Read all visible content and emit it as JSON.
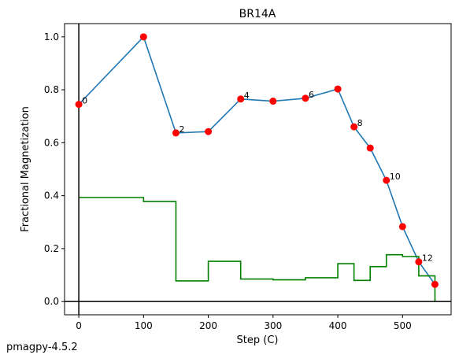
{
  "chart_data": {
    "type": "line",
    "title": "BR14A",
    "x_label": "Step (C)",
    "y_label": "Fractional Magnetization",
    "footer": "pmagpy-4.5.2",
    "x": [
      0,
      100,
      150,
      200,
      250,
      300,
      350,
      400,
      425,
      450,
      475,
      500,
      525,
      550
    ],
    "series": [
      {
        "name": "magnetization",
        "color": "#1f77b4",
        "marker_color": "#ff0000",
        "values": [
          0.745,
          1.0,
          0.637,
          0.642,
          0.765,
          0.757,
          0.768,
          0.803,
          0.66,
          0.58,
          0.458,
          0.283,
          0.15,
          0.065
        ],
        "point_labels": [
          0,
          null,
          2,
          null,
          4,
          null,
          6,
          null,
          8,
          null,
          10,
          null,
          12,
          null
        ]
      },
      {
        "name": "step",
        "color": "#008000",
        "step": "post",
        "values": [
          0.393,
          0.378,
          0.078,
          0.152,
          0.085,
          0.082,
          0.09,
          0.143,
          0.08,
          0.132,
          0.177,
          0.17,
          0.097,
          0.0
        ]
      }
    ],
    "xlim": [
      -22,
      575
    ],
    "ylim": [
      -0.05,
      1.05
    ],
    "xticks": [
      0,
      100,
      200,
      300,
      400,
      500
    ],
    "yticks": [
      {
        "value": 0,
        "label": "0.0"
      },
      {
        "value": 0.2,
        "label": "0.2"
      },
      {
        "value": 0.4,
        "label": "0.4"
      },
      {
        "value": 0.6,
        "label": "0.6"
      },
      {
        "value": 0.8,
        "label": "0.8"
      },
      {
        "value": 1.0,
        "label": "1.0"
      }
    ],
    "zero_lines": true
  }
}
